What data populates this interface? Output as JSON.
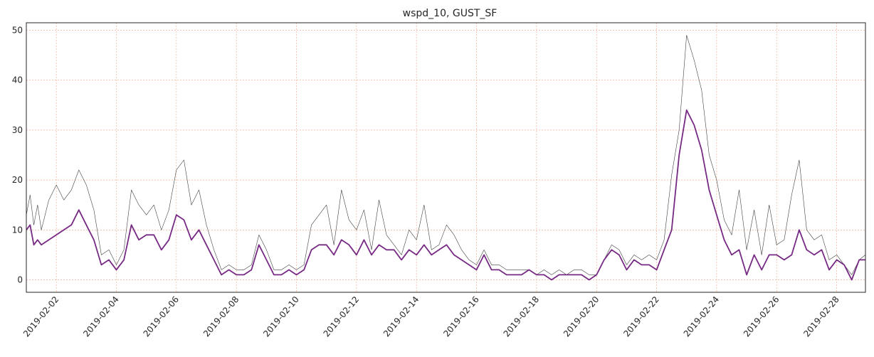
{
  "chart_data": {
    "type": "line",
    "title": "wspd_10, GUST_SF",
    "xlabel": "",
    "ylabel": "",
    "x_range": [
      "2019-02-01",
      "2019-02-28T23:00"
    ],
    "ylim": [
      -2.5,
      51.5
    ],
    "grid": true,
    "grid_color": "#f4a582",
    "x_ticks": [
      "2019-02-02",
      "2019-02-04",
      "2019-02-06",
      "2019-02-08",
      "2019-02-10",
      "2019-02-12",
      "2019-02-14",
      "2019-02-16",
      "2019-02-18",
      "2019-02-20",
      "2019-02-22",
      "2019-02-24",
      "2019-02-26",
      "2019-02-28"
    ],
    "y_ticks": [
      0,
      10,
      20,
      30,
      40,
      50
    ],
    "series": [
      {
        "color": "#404040",
        "points": [
          [
            "2019-02-01T00:00",
            13
          ],
          [
            "2019-02-01T03:00",
            17
          ],
          [
            "2019-02-01T06:00",
            11
          ],
          [
            "2019-02-01T09:00",
            15
          ],
          [
            "2019-02-01T12:00",
            10
          ],
          [
            "2019-02-01T18:00",
            16
          ],
          [
            "2019-02-02T00:00",
            19
          ],
          [
            "2019-02-02T06:00",
            16
          ],
          [
            "2019-02-02T12:00",
            18
          ],
          [
            "2019-02-02T18:00",
            22
          ],
          [
            "2019-02-03T00:00",
            19
          ],
          [
            "2019-02-03T06:00",
            14
          ],
          [
            "2019-02-03T12:00",
            5
          ],
          [
            "2019-02-03T18:00",
            6
          ],
          [
            "2019-02-04T00:00",
            3
          ],
          [
            "2019-02-04T06:00",
            6
          ],
          [
            "2019-02-04T12:00",
            18
          ],
          [
            "2019-02-04T18:00",
            15
          ],
          [
            "2019-02-05T00:00",
            13
          ],
          [
            "2019-02-05T06:00",
            15
          ],
          [
            "2019-02-05T12:00",
            10
          ],
          [
            "2019-02-05T18:00",
            14
          ],
          [
            "2019-02-06T00:00",
            22
          ],
          [
            "2019-02-06T06:00",
            24
          ],
          [
            "2019-02-06T12:00",
            15
          ],
          [
            "2019-02-06T18:00",
            18
          ],
          [
            "2019-02-07T00:00",
            11
          ],
          [
            "2019-02-07T06:00",
            6
          ],
          [
            "2019-02-07T12:00",
            2
          ],
          [
            "2019-02-07T18:00",
            3
          ],
          [
            "2019-02-08T00:00",
            2
          ],
          [
            "2019-02-08T06:00",
            2
          ],
          [
            "2019-02-08T12:00",
            3
          ],
          [
            "2019-02-08T18:00",
            9
          ],
          [
            "2019-02-09T00:00",
            6
          ],
          [
            "2019-02-09T06:00",
            2
          ],
          [
            "2019-02-09T12:00",
            2
          ],
          [
            "2019-02-09T18:00",
            3
          ],
          [
            "2019-02-10T00:00",
            2
          ],
          [
            "2019-02-10T06:00",
            3
          ],
          [
            "2019-02-10T12:00",
            11
          ],
          [
            "2019-02-10T18:00",
            13
          ],
          [
            "2019-02-11T00:00",
            15
          ],
          [
            "2019-02-11T06:00",
            7
          ],
          [
            "2019-02-11T12:00",
            18
          ],
          [
            "2019-02-11T18:00",
            12
          ],
          [
            "2019-02-12T00:00",
            10
          ],
          [
            "2019-02-12T06:00",
            14
          ],
          [
            "2019-02-12T12:00",
            6
          ],
          [
            "2019-02-12T18:00",
            16
          ],
          [
            "2019-02-13T00:00",
            9
          ],
          [
            "2019-02-13T06:00",
            7
          ],
          [
            "2019-02-13T12:00",
            5
          ],
          [
            "2019-02-13T18:00",
            10
          ],
          [
            "2019-02-14T00:00",
            8
          ],
          [
            "2019-02-14T06:00",
            15
          ],
          [
            "2019-02-14T12:00",
            6
          ],
          [
            "2019-02-14T18:00",
            7
          ],
          [
            "2019-02-15T00:00",
            11
          ],
          [
            "2019-02-15T06:00",
            9
          ],
          [
            "2019-02-15T12:00",
            6
          ],
          [
            "2019-02-15T18:00",
            4
          ],
          [
            "2019-02-16T00:00",
            3
          ],
          [
            "2019-02-16T06:00",
            6
          ],
          [
            "2019-02-16T12:00",
            3
          ],
          [
            "2019-02-16T18:00",
            3
          ],
          [
            "2019-02-17T00:00",
            2
          ],
          [
            "2019-02-17T06:00",
            2
          ],
          [
            "2019-02-17T12:00",
            2
          ],
          [
            "2019-02-17T18:00",
            2
          ],
          [
            "2019-02-18T00:00",
            1
          ],
          [
            "2019-02-18T06:00",
            2
          ],
          [
            "2019-02-18T12:00",
            1
          ],
          [
            "2019-02-18T18:00",
            2
          ],
          [
            "2019-02-19T00:00",
            1
          ],
          [
            "2019-02-19T06:00",
            2
          ],
          [
            "2019-02-19T12:00",
            2
          ],
          [
            "2019-02-19T18:00",
            1
          ],
          [
            "2019-02-20T00:00",
            1
          ],
          [
            "2019-02-20T06:00",
            4
          ],
          [
            "2019-02-20T12:00",
            7
          ],
          [
            "2019-02-20T18:00",
            6
          ],
          [
            "2019-02-21T00:00",
            3
          ],
          [
            "2019-02-21T06:00",
            5
          ],
          [
            "2019-02-21T12:00",
            4
          ],
          [
            "2019-02-21T18:00",
            5
          ],
          [
            "2019-02-22T00:00",
            4
          ],
          [
            "2019-02-22T06:00",
            8
          ],
          [
            "2019-02-22T12:00",
            21
          ],
          [
            "2019-02-22T18:00",
            30
          ],
          [
            "2019-02-23T00:00",
            49
          ],
          [
            "2019-02-23T06:00",
            44
          ],
          [
            "2019-02-23T12:00",
            38
          ],
          [
            "2019-02-23T18:00",
            25
          ],
          [
            "2019-02-24T00:00",
            20
          ],
          [
            "2019-02-24T06:00",
            12
          ],
          [
            "2019-02-24T12:00",
            9
          ],
          [
            "2019-02-24T18:00",
            18
          ],
          [
            "2019-02-25T00:00",
            6
          ],
          [
            "2019-02-25T06:00",
            14
          ],
          [
            "2019-02-25T12:00",
            5
          ],
          [
            "2019-02-25T18:00",
            15
          ],
          [
            "2019-02-26T00:00",
            7
          ],
          [
            "2019-02-26T06:00",
            8
          ],
          [
            "2019-02-26T12:00",
            17
          ],
          [
            "2019-02-26T18:00",
            24
          ],
          [
            "2019-02-27T00:00",
            10
          ],
          [
            "2019-02-27T06:00",
            8
          ],
          [
            "2019-02-27T12:00",
            9
          ],
          [
            "2019-02-27T18:00",
            4
          ],
          [
            "2019-02-28T00:00",
            5
          ],
          [
            "2019-02-28T06:00",
            3
          ],
          [
            "2019-02-28T12:00",
            1
          ],
          [
            "2019-02-28T18:00",
            4
          ],
          [
            "2019-02-28T23:00",
            5
          ]
        ]
      },
      {
        "color": "#762a83",
        "points": [
          [
            "2019-02-01T00:00",
            10
          ],
          [
            "2019-02-01T03:00",
            11
          ],
          [
            "2019-02-01T06:00",
            7
          ],
          [
            "2019-02-01T09:00",
            8
          ],
          [
            "2019-02-01T12:00",
            7
          ],
          [
            "2019-02-01T18:00",
            8
          ],
          [
            "2019-02-02T00:00",
            9
          ],
          [
            "2019-02-02T06:00",
            10
          ],
          [
            "2019-02-02T12:00",
            11
          ],
          [
            "2019-02-02T18:00",
            14
          ],
          [
            "2019-02-03T00:00",
            11
          ],
          [
            "2019-02-03T06:00",
            8
          ],
          [
            "2019-02-03T12:00",
            3
          ],
          [
            "2019-02-03T18:00",
            4
          ],
          [
            "2019-02-04T00:00",
            2
          ],
          [
            "2019-02-04T06:00",
            4
          ],
          [
            "2019-02-04T12:00",
            11
          ],
          [
            "2019-02-04T18:00",
            8
          ],
          [
            "2019-02-05T00:00",
            9
          ],
          [
            "2019-02-05T06:00",
            9
          ],
          [
            "2019-02-05T12:00",
            6
          ],
          [
            "2019-02-05T18:00",
            8
          ],
          [
            "2019-02-06T00:00",
            13
          ],
          [
            "2019-02-06T06:00",
            12
          ],
          [
            "2019-02-06T12:00",
            8
          ],
          [
            "2019-02-06T18:00",
            10
          ],
          [
            "2019-02-07T00:00",
            7
          ],
          [
            "2019-02-07T06:00",
            4
          ],
          [
            "2019-02-07T12:00",
            1
          ],
          [
            "2019-02-07T18:00",
            2
          ],
          [
            "2019-02-08T00:00",
            1
          ],
          [
            "2019-02-08T06:00",
            1
          ],
          [
            "2019-02-08T12:00",
            2
          ],
          [
            "2019-02-08T18:00",
            7
          ],
          [
            "2019-02-09T00:00",
            4
          ],
          [
            "2019-02-09T06:00",
            1
          ],
          [
            "2019-02-09T12:00",
            1
          ],
          [
            "2019-02-09T18:00",
            2
          ],
          [
            "2019-02-10T00:00",
            1
          ],
          [
            "2019-02-10T06:00",
            2
          ],
          [
            "2019-02-10T12:00",
            6
          ],
          [
            "2019-02-10T18:00",
            7
          ],
          [
            "2019-02-11T00:00",
            7
          ],
          [
            "2019-02-11T06:00",
            5
          ],
          [
            "2019-02-11T12:00",
            8
          ],
          [
            "2019-02-11T18:00",
            7
          ],
          [
            "2019-02-12T00:00",
            5
          ],
          [
            "2019-02-12T06:00",
            8
          ],
          [
            "2019-02-12T12:00",
            5
          ],
          [
            "2019-02-12T18:00",
            7
          ],
          [
            "2019-02-13T00:00",
            6
          ],
          [
            "2019-02-13T06:00",
            6
          ],
          [
            "2019-02-13T12:00",
            4
          ],
          [
            "2019-02-13T18:00",
            6
          ],
          [
            "2019-02-14T00:00",
            5
          ],
          [
            "2019-02-14T06:00",
            7
          ],
          [
            "2019-02-14T12:00",
            5
          ],
          [
            "2019-02-14T18:00",
            6
          ],
          [
            "2019-02-15T00:00",
            7
          ],
          [
            "2019-02-15T06:00",
            5
          ],
          [
            "2019-02-15T12:00",
            4
          ],
          [
            "2019-02-15T18:00",
            3
          ],
          [
            "2019-02-16T00:00",
            2
          ],
          [
            "2019-02-16T06:00",
            5
          ],
          [
            "2019-02-16T12:00",
            2
          ],
          [
            "2019-02-16T18:00",
            2
          ],
          [
            "2019-02-17T00:00",
            1
          ],
          [
            "2019-02-17T06:00",
            1
          ],
          [
            "2019-02-17T12:00",
            1
          ],
          [
            "2019-02-17T18:00",
            2
          ],
          [
            "2019-02-18T00:00",
            1
          ],
          [
            "2019-02-18T06:00",
            1
          ],
          [
            "2019-02-18T12:00",
            0
          ],
          [
            "2019-02-18T18:00",
            1
          ],
          [
            "2019-02-19T00:00",
            1
          ],
          [
            "2019-02-19T06:00",
            1
          ],
          [
            "2019-02-19T12:00",
            1
          ],
          [
            "2019-02-19T18:00",
            0
          ],
          [
            "2019-02-20T00:00",
            1
          ],
          [
            "2019-02-20T06:00",
            4
          ],
          [
            "2019-02-20T12:00",
            6
          ],
          [
            "2019-02-20T18:00",
            5
          ],
          [
            "2019-02-21T00:00",
            2
          ],
          [
            "2019-02-21T06:00",
            4
          ],
          [
            "2019-02-21T12:00",
            3
          ],
          [
            "2019-02-21T18:00",
            3
          ],
          [
            "2019-02-22T00:00",
            2
          ],
          [
            "2019-02-22T06:00",
            6
          ],
          [
            "2019-02-22T12:00",
            10
          ],
          [
            "2019-02-22T18:00",
            25
          ],
          [
            "2019-02-23T00:00",
            34
          ],
          [
            "2019-02-23T06:00",
            31
          ],
          [
            "2019-02-23T12:00",
            26
          ],
          [
            "2019-02-23T18:00",
            18
          ],
          [
            "2019-02-24T00:00",
            13
          ],
          [
            "2019-02-24T06:00",
            8
          ],
          [
            "2019-02-24T12:00",
            5
          ],
          [
            "2019-02-24T18:00",
            6
          ],
          [
            "2019-02-25T00:00",
            1
          ],
          [
            "2019-02-25T06:00",
            5
          ],
          [
            "2019-02-25T12:00",
            2
          ],
          [
            "2019-02-25T18:00",
            5
          ],
          [
            "2019-02-26T00:00",
            5
          ],
          [
            "2019-02-26T06:00",
            4
          ],
          [
            "2019-02-26T12:00",
            5
          ],
          [
            "2019-02-26T18:00",
            10
          ],
          [
            "2019-02-27T00:00",
            6
          ],
          [
            "2019-02-27T06:00",
            5
          ],
          [
            "2019-02-27T12:00",
            6
          ],
          [
            "2019-02-27T18:00",
            2
          ],
          [
            "2019-02-28T00:00",
            4
          ],
          [
            "2019-02-28T06:00",
            3
          ],
          [
            "2019-02-28T12:00",
            0
          ],
          [
            "2019-02-28T18:00",
            4
          ],
          [
            "2019-02-28T23:00",
            4
          ]
        ]
      }
    ]
  }
}
